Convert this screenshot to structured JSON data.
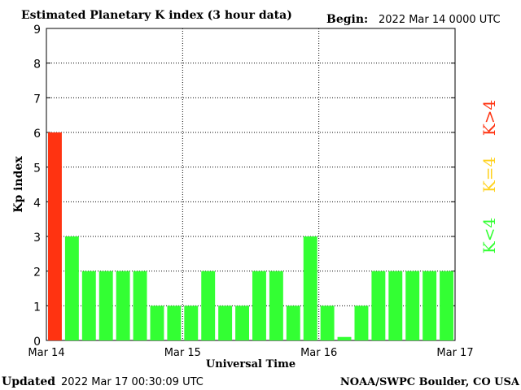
{
  "chart_data": {
    "type": "bar",
    "title": "Estimated Planetary K index (3 hour data)",
    "begin_label": "Begin:",
    "begin_value": "2022 Mar 14 0000 UTC",
    "xlabel": "Universal Time",
    "ylabel": "Kp index",
    "ylim": [
      0,
      9
    ],
    "yticks": [
      "0",
      "1",
      "2",
      "3",
      "4",
      "5",
      "6",
      "7",
      "8",
      "9"
    ],
    "xtick_labels": [
      "Mar 14",
      "Mar 15",
      "Mar 16",
      "Mar 17"
    ],
    "values": [
      6,
      3,
      2,
      2,
      2,
      2,
      1,
      1,
      1,
      2,
      1,
      1,
      2,
      2,
      1,
      3,
      1,
      0.1,
      1,
      2,
      2,
      2,
      2,
      2
    ],
    "grid": true,
    "legend": [
      {
        "label": "K<4",
        "color": "#33ff33"
      },
      {
        "label": "K=4",
        "color": "#ffd21f"
      },
      {
        "label": "K>4",
        "color": "#ff3311"
      }
    ],
    "colors": {
      "low": "#33ff33",
      "mid": "#ffd21f",
      "high": "#ff3311"
    }
  },
  "footer": {
    "updated_label": "Updated",
    "updated_value": "2022 Mar 17 00:30:09 UTC",
    "source": "NOAA/SWPC Boulder, CO USA"
  }
}
